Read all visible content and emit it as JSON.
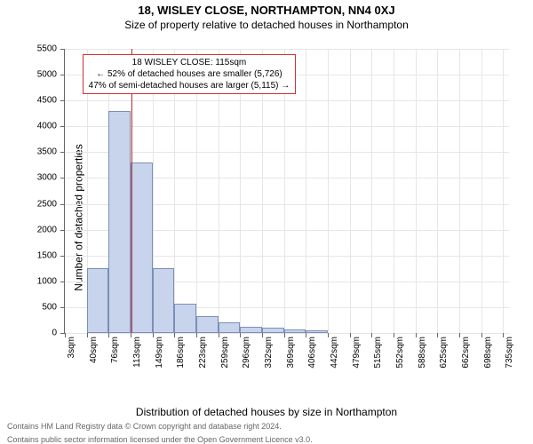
{
  "title1": "18, WISLEY CLOSE, NORTHAMPTON, NN4 0XJ",
  "title2": "Size of property relative to detached houses in Northampton",
  "ylabel": "Number of detached properties",
  "xlabel": "Distribution of detached houses by size in Northampton",
  "footer1": "Contains HM Land Registry data © Crown copyright and database right 2024.",
  "footer2": "Contains public sector information licensed under the Open Government Licence v3.0.",
  "chart": {
    "type": "histogram",
    "background_color": "#ffffff",
    "grid_color": "#e6e6e6",
    "axis_color": "#666666",
    "bar_fill": "#c8d4ec",
    "bar_stroke": "#7a8fb8",
    "marker_color": "#d03030",
    "ylim": [
      0,
      5500
    ],
    "ytick_step": 500,
    "xlim": [
      3,
      753
    ],
    "bin_width": 37,
    "xtick_labels": [
      "3sqm",
      "40sqm",
      "76sqm",
      "113sqm",
      "149sqm",
      "186sqm",
      "223sqm",
      "259sqm",
      "296sqm",
      "332sqm",
      "369sqm",
      "406sqm",
      "442sqm",
      "479sqm",
      "515sqm",
      "552sqm",
      "588sqm",
      "625sqm",
      "662sqm",
      "698sqm",
      "735sqm"
    ],
    "values": [
      0,
      1260,
      4300,
      3300,
      1260,
      560,
      320,
      200,
      120,
      100,
      70,
      50,
      0,
      0,
      0,
      0,
      0,
      0,
      0,
      0
    ],
    "marker_x": 115,
    "annotation": {
      "line1": "18 WISLEY CLOSE: 115sqm",
      "line2": "← 52% of detached houses are smaller (5,726)",
      "line3": "47% of semi-detached houses are larger (5,115) →",
      "border_color": "#d03030"
    },
    "tick_fontsize": 10,
    "label_fontsize": 12,
    "title_fontsize": 13
  }
}
